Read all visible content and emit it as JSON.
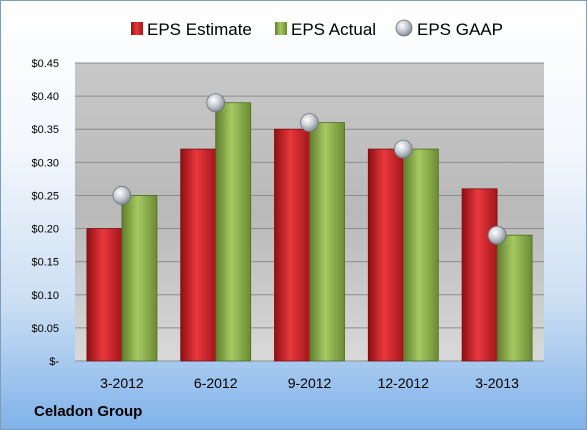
{
  "company": "Celadon Group",
  "chart_data": {
    "type": "bar",
    "categories": [
      "3-2012",
      "6-2012",
      "9-2012",
      "12-2012",
      "3-2013"
    ],
    "series": [
      {
        "name": "EPS Estimate",
        "kind": "bar",
        "color": "#d0252b",
        "values": [
          0.2,
          0.32,
          0.35,
          0.32,
          0.26
        ]
      },
      {
        "name": "EPS Actual",
        "kind": "bar",
        "color": "#8db24a",
        "values": [
          0.25,
          0.39,
          0.36,
          0.32,
          0.19
        ]
      },
      {
        "name": "EPS GAAP",
        "kind": "marker",
        "color": "#b8bec6",
        "values": [
          0.25,
          0.39,
          0.36,
          0.32,
          0.19
        ]
      }
    ],
    "yticks": [
      "$-",
      "$0.05",
      "$0.10",
      "$0.15",
      "$0.20",
      "$0.25",
      "$0.30",
      "$0.35",
      "$0.40",
      "$0.45"
    ],
    "ylim": [
      0,
      0.45
    ],
    "grid": true,
    "legend": "top"
  }
}
